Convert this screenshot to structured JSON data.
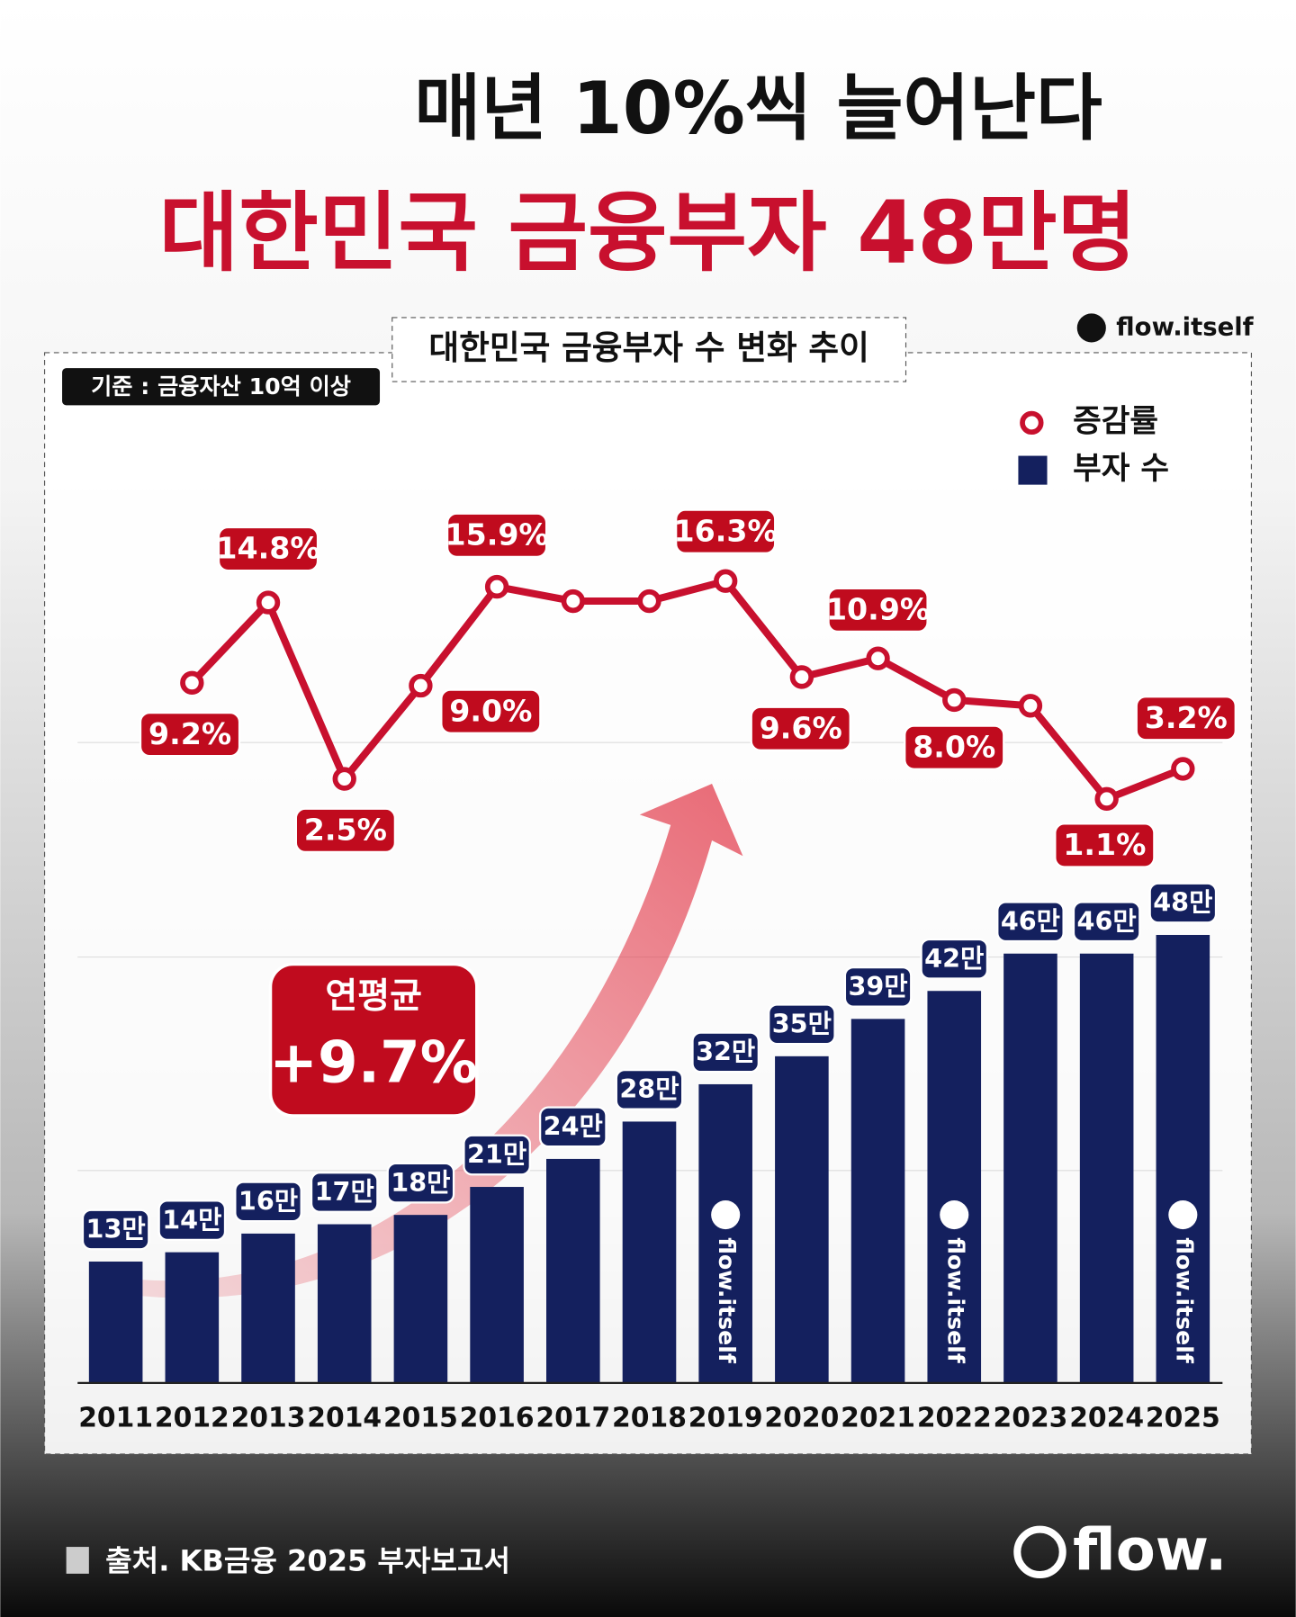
{
  "header": {
    "title": "매년 10%씩 늘어난다",
    "headline": "대한민국 금융부자 48만명",
    "handle": "flow.itself"
  },
  "chart_data": {
    "type": "bar-line",
    "title": "대한민국 금융부자 수 변화 추이",
    "note": "기준 : 금융자산 10억 이상",
    "categories": [
      "2011",
      "2012",
      "2013",
      "2014",
      "2015",
      "2016",
      "2017",
      "2018",
      "2019",
      "2020",
      "2021",
      "2022",
      "2023",
      "2024",
      "2025"
    ],
    "series": [
      {
        "name": "증감률",
        "type": "line",
        "color": "#c8102e",
        "values": [
          null,
          9.2,
          14.8,
          2.5,
          9.0,
          15.9,
          14.9,
          14.9,
          16.3,
          9.6,
          10.9,
          8.0,
          7.6,
          1.1,
          3.2
        ],
        "value_labels": [
          null,
          "9.2%",
          "14.8%",
          "2.5%",
          "9.0%",
          "15.9%",
          null,
          null,
          "16.3%",
          "9.6%",
          "10.9%",
          "8.0%",
          null,
          "1.1%",
          "3.2%"
        ]
      },
      {
        "name": "부자 수",
        "type": "bar",
        "color": "#14205e",
        "values": [
          13,
          14,
          16,
          17,
          18,
          21,
          24,
          28,
          32,
          35,
          39,
          42,
          46,
          46,
          48
        ],
        "value_labels": [
          "13만",
          "14만",
          "16만",
          "17만",
          "18만",
          "21만",
          "24만",
          "28만",
          "32만",
          "35만",
          "39만",
          "42만",
          "46만",
          "46만",
          "48만"
        ]
      }
    ],
    "callout": {
      "label": "연평균",
      "value": "+9.7%"
    },
    "watermark": "flow.itself"
  },
  "footer": {
    "source": "출처. KB금융 2025 부자보고서",
    "logo": "flow."
  }
}
